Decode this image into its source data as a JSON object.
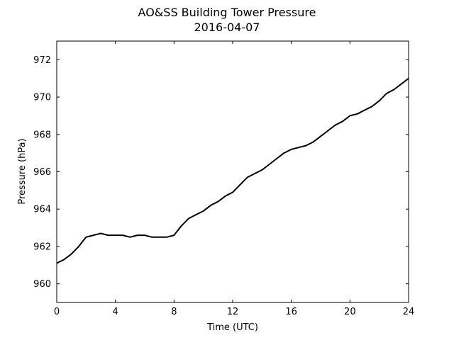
{
  "chart_data": {
    "type": "line",
    "title": "AO&SS Building Tower Pressure",
    "subtitle": "2016-04-07",
    "xlabel": "Time (UTC)",
    "ylabel": "Pressure (hPa)",
    "xlim": [
      0,
      24
    ],
    "ylim": [
      959.0,
      973.0
    ],
    "xticks": [
      0,
      4,
      8,
      12,
      16,
      20,
      24
    ],
    "yticks": [
      960,
      962,
      964,
      966,
      968,
      970,
      972
    ],
    "grid": false,
    "legend": "none",
    "series": [
      {
        "color": "#000000",
        "x": [
          0,
          0.5,
          1.0,
          1.5,
          2.0,
          2.5,
          3.0,
          3.5,
          4.0,
          4.5,
          5.0,
          5.5,
          6.0,
          6.5,
          7.0,
          7.5,
          8.0,
          8.5,
          9.0,
          9.5,
          10.0,
          10.5,
          11.0,
          11.5,
          12.0,
          12.5,
          13.0,
          13.5,
          14.0,
          14.5,
          15.0,
          15.5,
          16.0,
          16.5,
          17.0,
          17.5,
          18.0,
          18.5,
          19.0,
          19.5,
          20.0,
          20.5,
          21.0,
          21.5,
          22.0,
          22.5,
          23.0,
          23.5,
          24.0
        ],
        "y": [
          961.1,
          961.3,
          961.6,
          962.0,
          962.5,
          962.6,
          962.7,
          962.6,
          962.6,
          962.6,
          962.5,
          962.6,
          962.6,
          962.5,
          962.5,
          962.5,
          962.6,
          963.1,
          963.5,
          963.7,
          963.9,
          964.2,
          964.4,
          964.7,
          964.9,
          965.3,
          965.7,
          965.9,
          966.1,
          966.4,
          966.7,
          967.0,
          967.2,
          967.3,
          967.4,
          967.6,
          967.9,
          968.2,
          968.5,
          968.7,
          969.0,
          969.1,
          969.3,
          969.5,
          969.8,
          970.2,
          970.4,
          970.7,
          971.0
        ]
      }
    ]
  }
}
